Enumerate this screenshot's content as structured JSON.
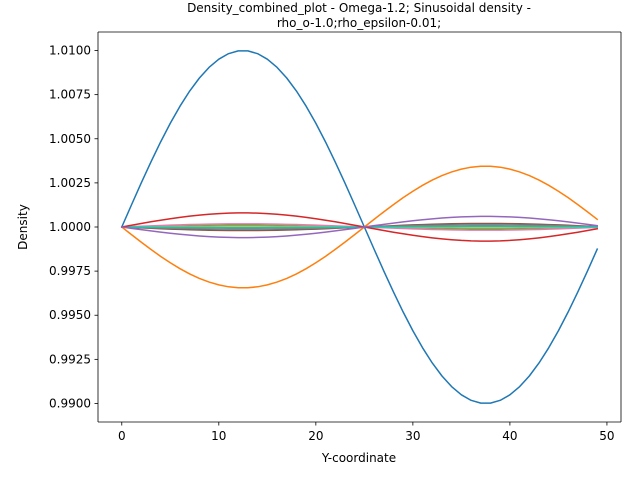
{
  "chart_data": {
    "type": "line",
    "title_lines": [
      "Density_combined_plot - Omega-1.2; Sinusoidal density -",
      "rho_o-1.0;rho_epsilon-0.01;"
    ],
    "xlabel": "Y-coordinate",
    "ylabel": "Density",
    "xlim": [
      -2.45,
      51.45
    ],
    "ylim": [
      0.98895,
      1.01105
    ],
    "xticks": [
      0,
      10,
      20,
      30,
      40,
      50
    ],
    "yticks": [
      0.99,
      0.9925,
      0.995,
      0.9975,
      1.0,
      1.0025,
      1.005,
      1.0075,
      1.01
    ],
    "ytick_labels": [
      "0.9900",
      "0.9925",
      "0.9950",
      "0.9975",
      "1.0000",
      "1.0025",
      "1.0050",
      "1.0075",
      "1.0100"
    ],
    "x": {
      "start": 0,
      "end": 49,
      "step": 1,
      "period": 50
    },
    "grid": false,
    "series": [
      {
        "amplitude": 0.01,
        "color": "#1f77b4"
      },
      {
        "amplitude": -0.00345,
        "color": "#ff7f0e"
      },
      {
        "amplitude": 0.0001,
        "color": "#2ca02c"
      },
      {
        "amplitude": -0.0002,
        "color": "#8c564b"
      },
      {
        "amplitude": 0.00018,
        "color": "#e377c2"
      },
      {
        "amplitude": -0.00012,
        "color": "#7f7f7f"
      },
      {
        "amplitude": 5e-05,
        "color": "#bcbd22"
      },
      {
        "amplitude": -4e-05,
        "color": "#17becf"
      },
      {
        "amplitude": 0.0008,
        "color": "#d62728"
      },
      {
        "amplitude": -0.0006,
        "color": "#9467bd"
      }
    ]
  }
}
